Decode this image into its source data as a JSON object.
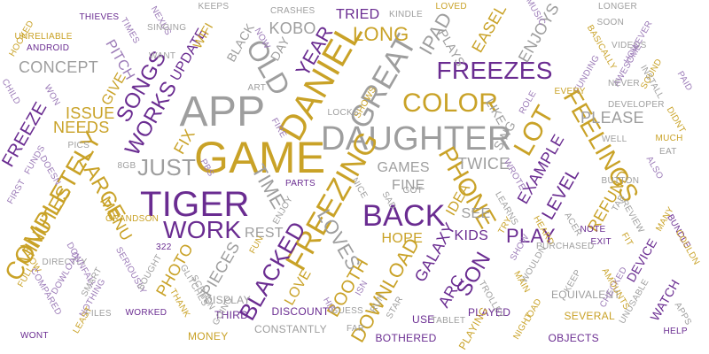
{
  "palette": {
    "gold": "#c9a227",
    "purple": "#6a2c91",
    "gray": "#9e9e9e",
    "lavender": "#9b7ab7",
    "white": "#ffffff"
  },
  "words": [
    {
      "text": "APP",
      "color": "gray"
    },
    {
      "text": "GAME",
      "color": "gold"
    },
    {
      "text": "DAUGHTER",
      "color": "gray"
    },
    {
      "text": "DANIEL",
      "color": "gold"
    },
    {
      "text": "TIGER",
      "color": "purple"
    },
    {
      "text": "FREEZES",
      "color": "purple"
    },
    {
      "text": "BACK",
      "color": "purple"
    },
    {
      "text": "FREEZING",
      "color": "gold"
    },
    {
      "text": "OLD",
      "color": "gray"
    },
    {
      "text": "GREAT",
      "color": "gray"
    },
    {
      "text": "COLOR",
      "color": "gold"
    },
    {
      "text": "WORK",
      "color": "purple"
    },
    {
      "text": "COMPLETELY",
      "color": "gold"
    },
    {
      "text": "PHONE",
      "color": "gold"
    },
    {
      "text": "JUST",
      "color": "gray"
    },
    {
      "text": "LOT",
      "color": "gold"
    },
    {
      "text": "FEELINGS",
      "color": "gold"
    },
    {
      "text": "SONGS",
      "color": "purple"
    },
    {
      "text": "WORKS",
      "color": "purple"
    },
    {
      "text": "YEAR",
      "color": "purple"
    },
    {
      "text": "LONG",
      "color": "gold"
    },
    {
      "text": "IPAD",
      "color": "gray"
    },
    {
      "text": "LARGE",
      "color": "gold"
    },
    {
      "text": "MINUTES",
      "color": "gold"
    },
    {
      "text": "LOVES",
      "color": "gray"
    },
    {
      "text": "BLACKED",
      "color": "purple"
    },
    {
      "text": "BOOTH",
      "color": "gold"
    },
    {
      "text": "SON",
      "color": "purple"
    },
    {
      "text": "TIME",
      "color": "gray"
    },
    {
      "text": "PLAY",
      "color": "purple"
    },
    {
      "text": "HOPE",
      "color": "gold"
    },
    {
      "text": "DOWNLOAD",
      "color": "gold"
    },
    {
      "text": "FREEZE",
      "color": "purple"
    },
    {
      "text": "CONCEPT",
      "color": "gray"
    },
    {
      "text": "ISSUE",
      "color": "gold"
    },
    {
      "text": "NEEDS",
      "color": "gold"
    },
    {
      "text": "PLEASE",
      "color": "gray"
    },
    {
      "text": "TWICE",
      "color": "gray"
    },
    {
      "text": "MENU",
      "color": "gold"
    },
    {
      "text": "TRIED",
      "color": "purple"
    },
    {
      "text": "KOBO",
      "color": "gray"
    },
    {
      "text": "UPDATE",
      "color": "purple"
    },
    {
      "text": "PITCH",
      "color": "lavender"
    },
    {
      "text": "GIVE",
      "color": "gold"
    },
    {
      "text": "FIX",
      "color": "gold"
    },
    {
      "text": "PHOTO",
      "color": "gold"
    },
    {
      "text": "PIECES",
      "color": "gray"
    },
    {
      "text": "REST",
      "color": "gray"
    },
    {
      "text": "LOVE",
      "color": "gold"
    },
    {
      "text": "GALAXY",
      "color": "purple"
    },
    {
      "text": "ARC",
      "color": "purple"
    },
    {
      "text": "KIDS",
      "color": "purple"
    },
    {
      "text": "EXAMPLE",
      "color": "purple"
    },
    {
      "text": "LEVEL",
      "color": "purple"
    },
    {
      "text": "REFUND",
      "color": "gold"
    },
    {
      "text": "SING",
      "color": "gray"
    },
    {
      "text": "IDEA",
      "color": "gold"
    },
    {
      "text": "SEE",
      "color": "gray"
    },
    {
      "text": "FINE",
      "color": "gray"
    },
    {
      "text": "GAMES",
      "color": "gray"
    },
    {
      "text": "EASEL",
      "color": "gold"
    },
    {
      "text": "ENJOYS",
      "color": "gray"
    },
    {
      "text": "PLAYS",
      "color": "gray"
    },
    {
      "text": "WIFI",
      "color": "gold"
    },
    {
      "text": "BLACK",
      "color": "gray"
    },
    {
      "text": "DAY",
      "color": "gray"
    },
    {
      "text": "LIKE",
      "color": "gray"
    },
    {
      "text": "WATCH",
      "color": "purple"
    },
    {
      "text": "DEVICE",
      "color": "purple"
    },
    {
      "text": "PLAYED",
      "color": "purple"
    },
    {
      "text": "SEVERAL",
      "color": "gold"
    },
    {
      "text": "DISCOUNT",
      "color": "purple"
    },
    {
      "text": "MONEY",
      "color": "gold"
    },
    {
      "text": "CONSTANTLY",
      "color": "gray"
    },
    {
      "text": "BOTHERED",
      "color": "purple"
    },
    {
      "text": "OBJECTS",
      "color": "purple"
    },
    {
      "text": "EQUIVALENT",
      "color": "gray"
    },
    {
      "text": "USE",
      "color": "purple"
    },
    {
      "text": "PLAYING",
      "color": "gold"
    },
    {
      "text": "DISPLAY",
      "color": "gray"
    },
    {
      "text": "THIRD",
      "color": "purple"
    },
    {
      "text": "HOOKED",
      "color": "gold"
    },
    {
      "text": "UNRELIABLE",
      "color": "gold"
    },
    {
      "text": "ANDROID",
      "color": "purple"
    },
    {
      "text": "THIEVES",
      "color": "purple"
    },
    {
      "text": "TIMES",
      "color": "lavender"
    },
    {
      "text": "NEXUS",
      "color": "lavender"
    },
    {
      "text": "KEEPS",
      "color": "gray"
    },
    {
      "text": "CRASHES",
      "color": "gray"
    },
    {
      "text": "KINDLE",
      "color": "gray"
    },
    {
      "text": "LOVED",
      "color": "gold"
    },
    {
      "text": "MUSIC",
      "color": "lavender"
    },
    {
      "text": "LONGER",
      "color": "gray"
    },
    {
      "text": "SOON",
      "color": "gray"
    },
    {
      "text": "VIDEOS",
      "color": "gray"
    },
    {
      "text": "HOWEVER",
      "color": "lavender"
    },
    {
      "text": "SINGING",
      "color": "gray"
    },
    {
      "text": "WANT",
      "color": "gray"
    },
    {
      "text": "NOW",
      "color": "lavender"
    },
    {
      "text": "FUNDING",
      "color": "lavender"
    },
    {
      "text": "AWESOME",
      "color": "lavender"
    },
    {
      "text": "SOUND",
      "color": "gold"
    },
    {
      "text": "BASICALLY",
      "color": "gold"
    },
    {
      "text": "NEVER",
      "color": "gray"
    },
    {
      "text": "INSTALL",
      "color": "gray"
    },
    {
      "text": "PAID",
      "color": "lavender"
    },
    {
      "text": "CHILD",
      "color": "lavender"
    },
    {
      "text": "WON",
      "color": "lavender"
    },
    {
      "text": "ART",
      "color": "gray"
    },
    {
      "text": "SHOWS",
      "color": "gold"
    },
    {
      "text": "EVERY",
      "color": "gold"
    },
    {
      "text": "ROLE",
      "color": "lavender"
    },
    {
      "text": "DEVELOPER",
      "color": "gray"
    },
    {
      "text": "DIDNT",
      "color": "gold"
    },
    {
      "text": "LOCKS",
      "color": "gray"
    },
    {
      "text": "PICS",
      "color": "gray"
    },
    {
      "text": "PBS",
      "color": "lavender"
    },
    {
      "text": "FIRE",
      "color": "lavender"
    },
    {
      "text": "WROTE",
      "color": "lavender"
    },
    {
      "text": "WELL",
      "color": "gray"
    },
    {
      "text": "MUCH",
      "color": "gold"
    },
    {
      "text": "EAT",
      "color": "gray"
    },
    {
      "text": "ALSO",
      "color": "lavender"
    },
    {
      "text": "FUNDS",
      "color": "lavender"
    },
    {
      "text": "DOESN",
      "color": "lavender"
    },
    {
      "text": "8GB",
      "color": "gray"
    },
    {
      "text": "FIRST",
      "color": "lavender"
    },
    {
      "text": "PARTS",
      "color": "purple"
    },
    {
      "text": "NICE",
      "color": "gray"
    },
    {
      "text": "GOT",
      "color": "gray"
    },
    {
      "text": "SAD",
      "color": "gray"
    },
    {
      "text": "ENJOY",
      "color": "gray"
    },
    {
      "text": "LEARNS",
      "color": "gray"
    },
    {
      "text": "HEARD",
      "color": "gold"
    },
    {
      "text": "ACER",
      "color": "gray"
    },
    {
      "text": "REVIEW",
      "color": "gray"
    },
    {
      "text": "BUTTON",
      "color": "gray"
    },
    {
      "text": "TAB",
      "color": "gray"
    },
    {
      "text": "MANY",
      "color": "gold"
    },
    {
      "text": "BUNDLE",
      "color": "purple"
    },
    {
      "text": "COULDN",
      "color": "gold"
    },
    {
      "text": "FIT",
      "color": "gold"
    },
    {
      "text": "NOTE",
      "color": "purple"
    },
    {
      "text": "EXIT",
      "color": "purple"
    },
    {
      "text": "TRY",
      "color": "gold"
    },
    {
      "text": "SHOW",
      "color": "lavender"
    },
    {
      "text": "PURCHASED",
      "color": "gray"
    },
    {
      "text": "GRANDSON",
      "color": "gold"
    },
    {
      "text": "DIRECTLY",
      "color": "gray"
    },
    {
      "text": "322",
      "color": "purple"
    },
    {
      "text": "FUN",
      "color": "gold"
    },
    {
      "text": "DOWNFALL",
      "color": "lavender"
    },
    {
      "text": "SMART",
      "color": "gray"
    },
    {
      "text": "FULL",
      "color": "gold"
    },
    {
      "text": "ALLOW",
      "color": "gold"
    },
    {
      "text": "DOWLOAD",
      "color": "lavender"
    },
    {
      "text": "SERIOUSLY",
      "color": "lavender"
    },
    {
      "text": "BOUGHT",
      "color": "gray"
    },
    {
      "text": "COMPARED",
      "color": "lavender"
    },
    {
      "text": "NOTHING",
      "color": "lavender"
    },
    {
      "text": "GLITCHES",
      "color": "gray"
    },
    {
      "text": "THANK",
      "color": "gold"
    },
    {
      "text": "SCREEN",
      "color": "gray"
    },
    {
      "text": "FILES",
      "color": "gray"
    },
    {
      "text": "WORKED",
      "color": "purple"
    },
    {
      "text": "GOING",
      "color": "gray"
    },
    {
      "text": "LEAST",
      "color": "gold"
    },
    {
      "text": "WONT",
      "color": "purple"
    },
    {
      "text": "FAR",
      "color": "gray"
    },
    {
      "text": "GUESS",
      "color": "gray"
    },
    {
      "text": "RUN",
      "color": "gray"
    },
    {
      "text": "HIE",
      "color": "lavender"
    },
    {
      "text": "ISN",
      "color": "lavender"
    },
    {
      "text": "STAR",
      "color": "gray"
    },
    {
      "text": "TABLET",
      "color": "gray"
    },
    {
      "text": "WOULDN",
      "color": "gray"
    },
    {
      "text": "MAIN",
      "color": "gold"
    },
    {
      "text": "KEEP",
      "color": "gray"
    },
    {
      "text": "LOAD",
      "color": "gold"
    },
    {
      "text": "TROLLEY",
      "color": "gray"
    },
    {
      "text": "NIGHT",
      "color": "gold"
    },
    {
      "text": "UNUSABLE",
      "color": "gray"
    },
    {
      "text": "CHECKED",
      "color": "lavender"
    },
    {
      "text": "AMOUNTS",
      "color": "gold"
    },
    {
      "text": "APPS",
      "color": "gray"
    },
    {
      "text": "HELP",
      "color": "purple"
    }
  ]
}
